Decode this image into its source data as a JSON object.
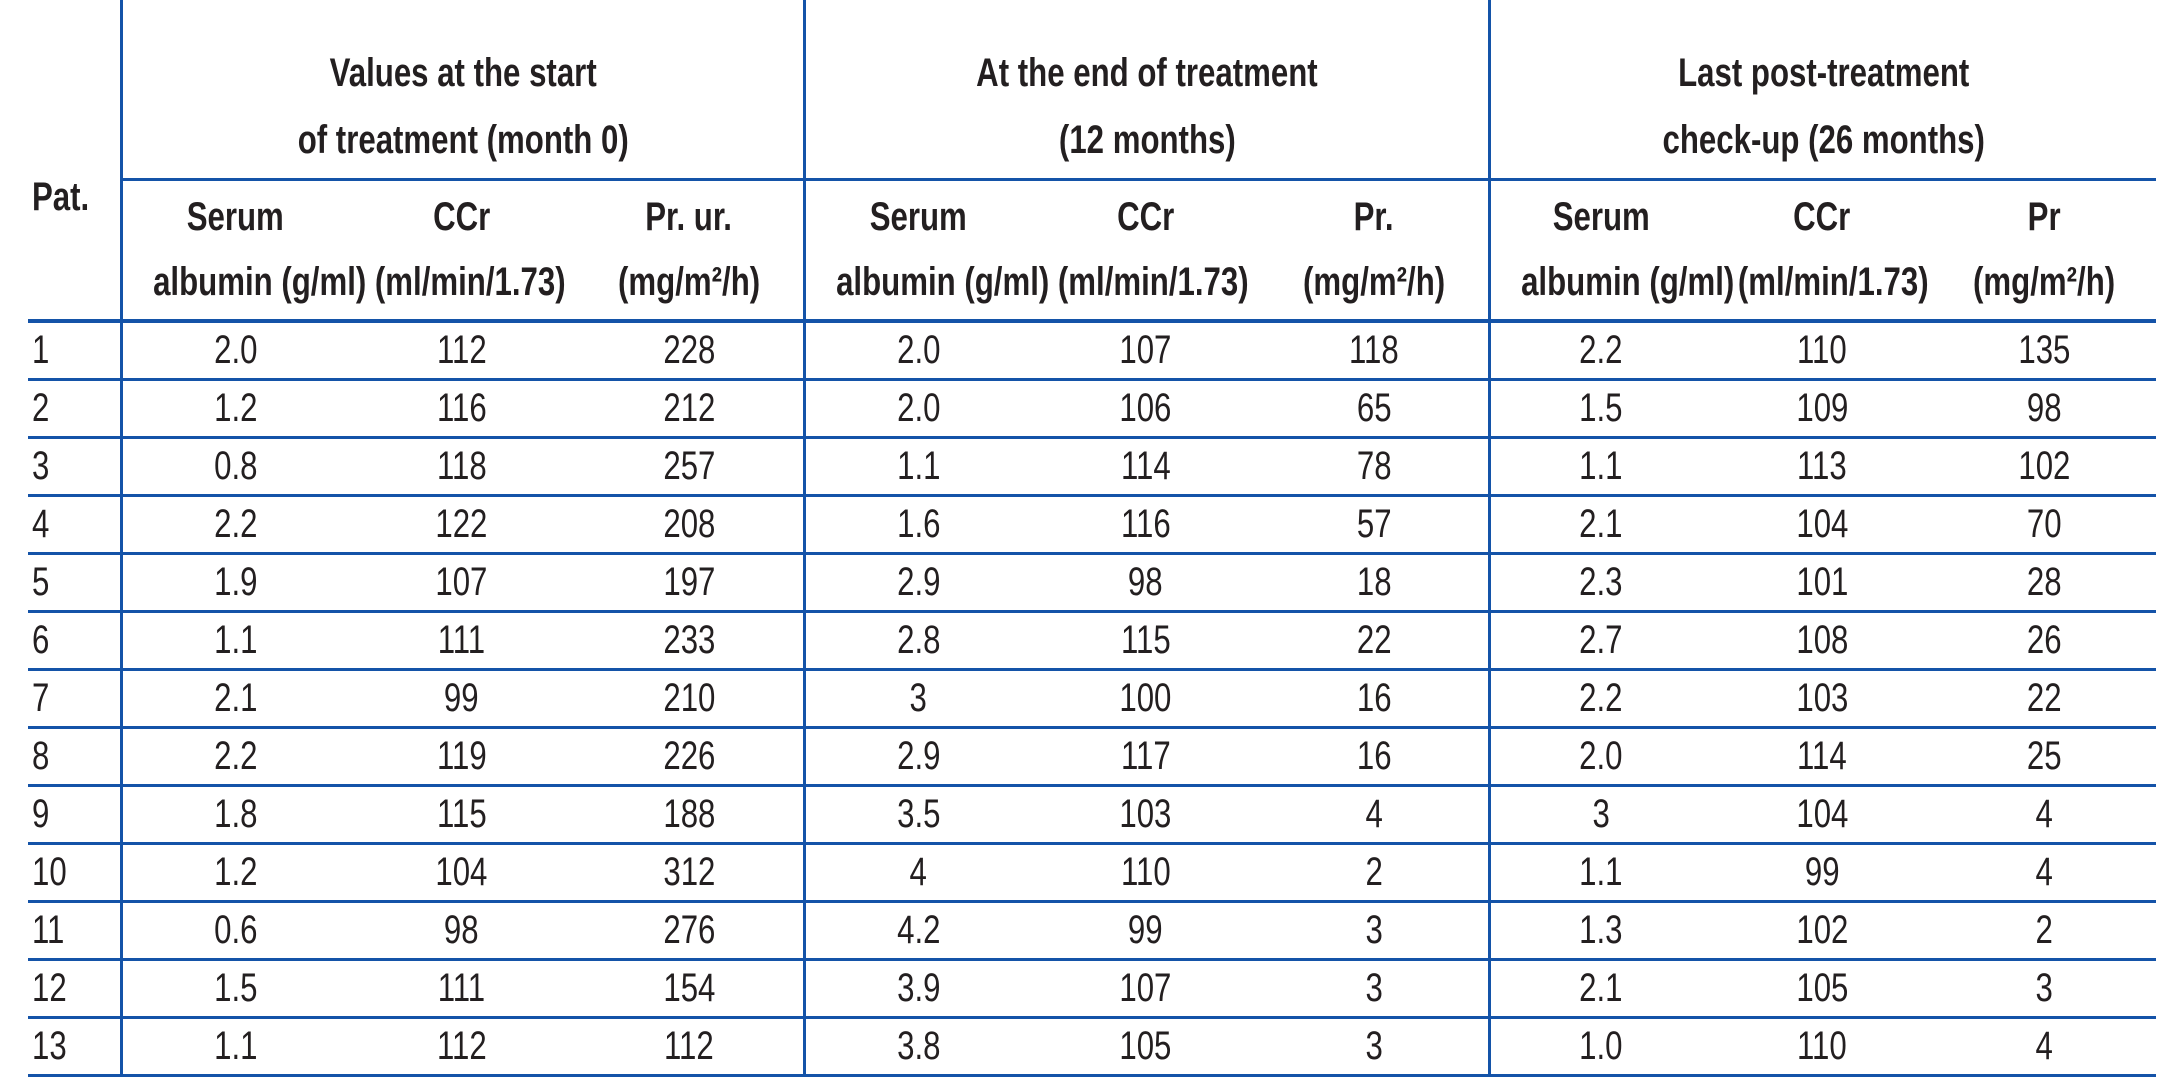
{
  "table": {
    "pat_header": "Pat.",
    "groups": [
      {
        "title_line1": "Values at the start",
        "title_line2": "of treatment (month 0)",
        "columns": [
          {
            "line1": "Serum",
            "line2": "albumin (g/ml)"
          },
          {
            "line1": "CCr",
            "line2": "(ml/min/1.73)"
          },
          {
            "line1": "Pr. ur.",
            "line2": "(mg/m²/h)"
          }
        ]
      },
      {
        "title_line1": "At the end of treatment",
        "title_line2": "(12 months)",
        "columns": [
          {
            "line1": "Serum",
            "line2": "albumin (g/ml)"
          },
          {
            "line1": "CCr",
            "line2": "(ml/min/1.73)"
          },
          {
            "line1": "Pr.",
            "line2": "(mg/m²/h)"
          }
        ]
      },
      {
        "title_line1": "Last post-treatment",
        "title_line2": "check-up (26 months)",
        "columns": [
          {
            "line1": "Serum",
            "line2": "albumin (g/ml)"
          },
          {
            "line1": "CCr",
            "line2": "(ml/min/1.73)"
          },
          {
            "line1": "Pr",
            "line2": "(mg/m²/h)"
          }
        ]
      }
    ],
    "rows": [
      {
        "pat": "1",
        "values": [
          "2.0",
          "112",
          "228",
          "2.0",
          "107",
          "118",
          "2.2",
          "110",
          "135"
        ]
      },
      {
        "pat": "2",
        "values": [
          "1.2",
          "116",
          "212",
          "2.0",
          "106",
          "65",
          "1.5",
          "109",
          "98"
        ]
      },
      {
        "pat": "3",
        "values": [
          "0.8",
          "118",
          "257",
          "1.1",
          "114",
          "78",
          "1.1",
          "113",
          "102"
        ]
      },
      {
        "pat": "4",
        "values": [
          "2.2",
          "122",
          "208",
          "1.6",
          "116",
          "57",
          "2.1",
          "104",
          "70"
        ]
      },
      {
        "pat": "5",
        "values": [
          "1.9",
          "107",
          "197",
          "2.9",
          "98",
          "18",
          "2.3",
          "101",
          "28"
        ]
      },
      {
        "pat": "6",
        "values": [
          "1.1",
          "111",
          "233",
          "2.8",
          "115",
          "22",
          "2.7",
          "108",
          "26"
        ]
      },
      {
        "pat": "7",
        "values": [
          "2.1",
          "99",
          "210",
          "3",
          "100",
          "16",
          "2.2",
          "103",
          "22"
        ]
      },
      {
        "pat": "8",
        "values": [
          "2.2",
          "119",
          "226",
          "2.9",
          "117",
          "16",
          "2.0",
          "114",
          "25"
        ]
      },
      {
        "pat": "9",
        "values": [
          "1.8",
          "115",
          "188",
          "3.5",
          "103",
          "4",
          "3",
          "104",
          "4"
        ]
      },
      {
        "pat": "10",
        "values": [
          "1.2",
          "104",
          "312",
          "4",
          "110",
          "2",
          "1.1",
          "99",
          "4"
        ]
      },
      {
        "pat": "11",
        "values": [
          "0.6",
          "98",
          "276",
          "4.2",
          "99",
          "3",
          "1.3",
          "102",
          "2"
        ]
      },
      {
        "pat": "12",
        "values": [
          "1.5",
          "111",
          "154",
          "3.9",
          "107",
          "3",
          "2.1",
          "105",
          "3"
        ]
      },
      {
        "pat": "13",
        "values": [
          "1.1",
          "112",
          "112",
          "3.8",
          "105",
          "3",
          "1.0",
          "110",
          "4"
        ]
      }
    ]
  },
  "colors": {
    "rule_blue": "#1453a8",
    "text_ink": "#231f20"
  }
}
